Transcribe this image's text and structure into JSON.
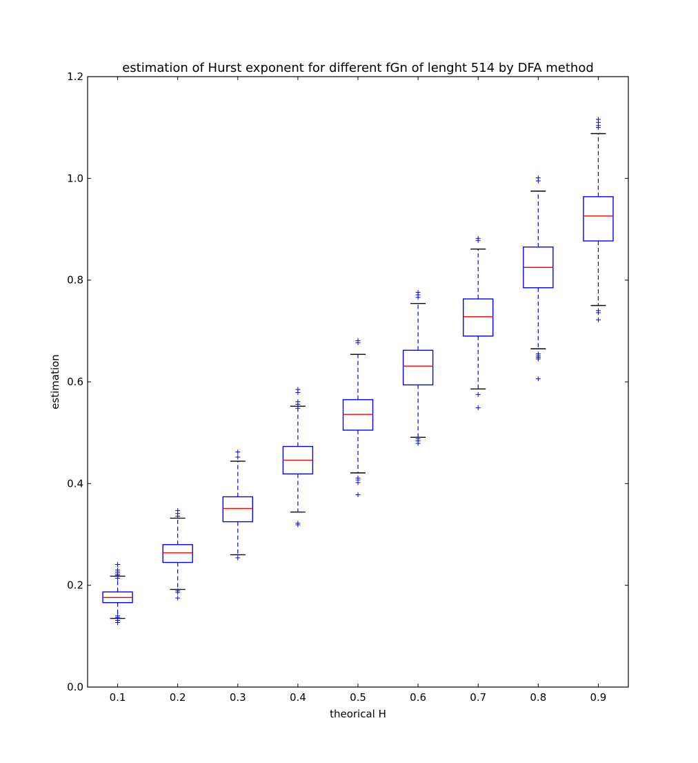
{
  "chart_data": {
    "type": "box",
    "title": "estimation of Hurst exponent for different fGn of lenght 514 by DFA method",
    "xlabel": "theorical H",
    "ylabel": "estimation",
    "categories": [
      "0.1",
      "0.2",
      "0.3",
      "0.4",
      "0.5",
      "0.6",
      "0.7",
      "0.8",
      "0.9"
    ],
    "ylim": [
      0.0,
      1.2
    ],
    "yticks": [
      "0.0",
      "0.2",
      "0.4",
      "0.6",
      "0.8",
      "1.0",
      "1.2"
    ],
    "grid": false,
    "boxes": [
      {
        "whisker_low": 0.135,
        "q1": 0.166,
        "median": 0.176,
        "q3": 0.187,
        "whisker_high": 0.218,
        "outliers": [
          0.127,
          0.131,
          0.137,
          0.14,
          0.214,
          0.219,
          0.222,
          0.226,
          0.23,
          0.241
        ]
      },
      {
        "whisker_low": 0.192,
        "q1": 0.245,
        "median": 0.264,
        "q3": 0.28,
        "whisker_high": 0.332,
        "outliers": [
          0.175,
          0.186,
          0.189,
          0.336,
          0.341,
          0.347
        ]
      },
      {
        "whisker_low": 0.26,
        "q1": 0.325,
        "median": 0.351,
        "q3": 0.374,
        "whisker_high": 0.444,
        "outliers": [
          0.254,
          0.452,
          0.462
        ]
      },
      {
        "whisker_low": 0.344,
        "q1": 0.419,
        "median": 0.446,
        "q3": 0.473,
        "whisker_high": 0.552,
        "outliers": [
          0.319,
          0.322,
          0.548,
          0.556,
          0.561,
          0.579,
          0.585
        ]
      },
      {
        "whisker_low": 0.421,
        "q1": 0.505,
        "median": 0.536,
        "q3": 0.565,
        "whisker_high": 0.654,
        "outliers": [
          0.378,
          0.402,
          0.407,
          0.411,
          0.677,
          0.681
        ]
      },
      {
        "whisker_low": 0.491,
        "q1": 0.594,
        "median": 0.631,
        "q3": 0.662,
        "whisker_high": 0.754,
        "outliers": [
          0.479,
          0.484,
          0.488,
          0.766,
          0.771,
          0.776
        ]
      },
      {
        "whisker_low": 0.586,
        "q1": 0.69,
        "median": 0.728,
        "q3": 0.763,
        "whisker_high": 0.861,
        "outliers": [
          0.549,
          0.575,
          0.878,
          0.882
        ]
      },
      {
        "whisker_low": 0.665,
        "q1": 0.785,
        "median": 0.825,
        "q3": 0.865,
        "whisker_high": 0.975,
        "outliers": [
          0.606,
          0.645,
          0.648,
          0.651,
          0.655,
          0.995,
          1.001
        ]
      },
      {
        "whisker_low": 0.75,
        "q1": 0.877,
        "median": 0.926,
        "q3": 0.964,
        "whisker_high": 1.088,
        "outliers": [
          0.722,
          0.736,
          0.74,
          1.1,
          1.104,
          1.11,
          1.116
        ]
      }
    ],
    "colors": {
      "box": "#0000ff",
      "median": "#ff0000",
      "whisker": "#0000ff",
      "cap": "#000000",
      "outlier": "#0000ff"
    }
  }
}
